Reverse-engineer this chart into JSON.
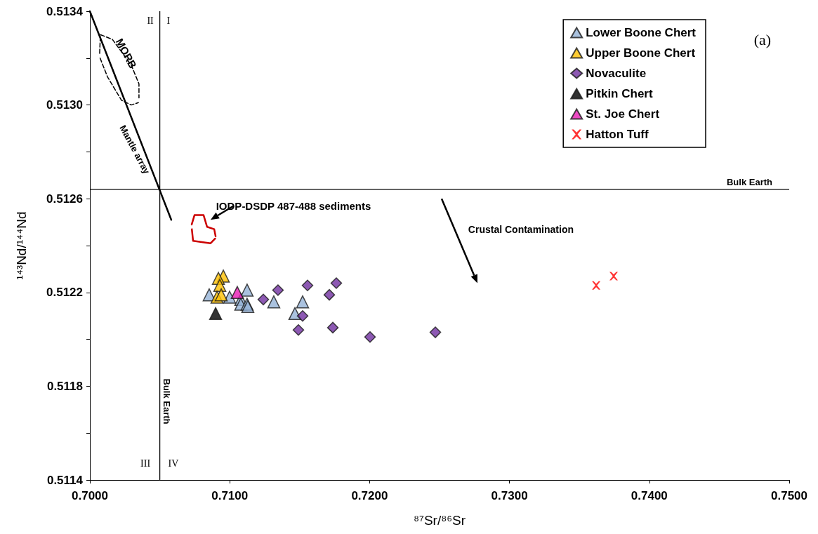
{
  "chart_data": {
    "type": "scatter",
    "xlabel": "⁸⁷Sr/⁸⁶Sr",
    "ylabel": "¹⁴³Nd/¹⁴⁴Nd",
    "xlim": [
      0.7,
      0.75
    ],
    "xticks": [
      {
        "value": 0.7,
        "label": "0.7000"
      },
      {
        "value": 0.71,
        "label": "0.7100"
      },
      {
        "value": 0.72,
        "label": "0.7200"
      },
      {
        "value": 0.73,
        "label": "0.7300"
      },
      {
        "value": 0.74,
        "label": "0.7400"
      },
      {
        "value": 0.75,
        "label": "0.7500"
      }
    ],
    "ylim": [
      0.5114,
      0.5134
    ],
    "yticks": [
      0.5114,
      {
        "value": 0.5116,
        "label": null
      },
      0.5118,
      {
        "value": 0.512,
        "label": null
      },
      0.5122,
      {
        "value": 0.5124,
        "label": null
      },
      0.5126,
      {
        "value": 0.5128,
        "label": null
      },
      {
        "value": 0.513,
        "label": "0.5130"
      },
      {
        "value": 0.5132,
        "label": null
      },
      0.5134
    ],
    "grid": false,
    "legend": "top right",
    "series": [
      {
        "name": "Lower Boone Chert",
        "marker": "triangle",
        "color": "#95b3d7",
        "x": [
          0.70853,
          0.71124,
          0.70999,
          0.71079,
          0.71079,
          0.71124,
          0.71129,
          0.71315,
          0.71521,
          0.71466
        ],
        "values": [
          0.51219,
          0.51221,
          0.51218,
          0.51217,
          0.51215,
          0.51215,
          0.51214,
          0.51216,
          0.51216,
          0.51211
        ]
      },
      {
        "name": "Upper Boone Chert",
        "marker": "triangle",
        "color": "#ffc000",
        "x": [
          0.70954,
          0.70919,
          0.70929,
          0.70909,
          0.70939
        ],
        "values": [
          0.51227,
          0.51226,
          0.51223,
          0.51218,
          0.51219
        ]
      },
      {
        "name": "Novaculite",
        "marker": "diamond",
        "color": "#7030a0",
        "x": [
          0.7124,
          0.71345,
          0.71556,
          0.71762,
          0.71712,
          0.71521,
          0.71491,
          0.71737,
          0.72003,
          0.7247
        ],
        "values": [
          0.51217,
          0.51221,
          0.51223,
          0.51224,
          0.51219,
          0.5121,
          0.51204,
          0.51205,
          0.51201,
          0.51203
        ]
      },
      {
        "name": "Pitkin Chert",
        "marker": "triangle",
        "color": "#000000",
        "x": [
          0.70899
        ],
        "values": [
          0.51211
        ]
      },
      {
        "name": "St. Joe Chert",
        "marker": "triangle",
        "color": "#e81ab4",
        "x": [
          0.71054
        ],
        "values": [
          0.5122
        ]
      },
      {
        "name": "Hatton Tuff",
        "marker": "cross",
        "color": "#ff0000",
        "x": [
          0.7362,
          0.73745
        ],
        "values": [
          0.51223,
          0.51227
        ]
      },
      {
        "type": "line",
        "marker": "none",
        "line_style": "solid",
        "color": "#000000",
        "x": [
          0.7,
          0.70582
        ],
        "values": [
          0.5134,
          0.51251
        ]
      },
      {
        "type": "line",
        "marker": "none",
        "line_style": "dashed",
        "color": "#000000",
        "x": [
          0.7007,
          0.70075,
          0.70161,
          0.70296,
          0.70351,
          0.70351
        ],
        "values": [
          0.51322,
          0.5133,
          0.51328,
          0.51317,
          0.51309,
          0.51303
        ]
      },
      {
        "type": "line",
        "marker": "none",
        "line_style": "dashed",
        "color": "#000000",
        "x": [
          0.70073,
          0.70126,
          0.70226,
          0.70296,
          0.70347
        ],
        "values": [
          0.5132,
          0.51312,
          0.51302,
          0.513,
          0.51301
        ]
      },
      {
        "type": "line",
        "marker": "none",
        "line_style": "solid",
        "color": "#cc0000",
        "x": [
          0.70728,
          0.70748,
          0.70813,
          0.70838,
          0.70889,
          0.70899
        ],
        "values": [
          0.51249,
          0.51253,
          0.51253,
          0.51248,
          0.51247,
          0.51244
        ]
      },
      {
        "type": "line",
        "marker": "none",
        "line_style": "solid",
        "color": "#cc0000",
        "x": [
          0.70729,
          0.70738,
          0.70863,
          0.70896
        ],
        "values": [
          0.51247,
          0.51242,
          0.51241,
          0.51243
        ]
      }
    ],
    "ref_lines": [
      {
        "axis": "x",
        "value": 0.705,
        "label": "Bulk Earth",
        "color": "#000000"
      },
      {
        "axis": "y",
        "value": 0.51264,
        "label": "Bulk Earth",
        "color": "#000000"
      }
    ],
    "annotations": [
      "(a)",
      "MORB",
      "Mantle array",
      "IODP-DSDP 487-488 sediments",
      "Crustal Contamination",
      "II",
      "I",
      "III",
      "IV"
    ]
  }
}
